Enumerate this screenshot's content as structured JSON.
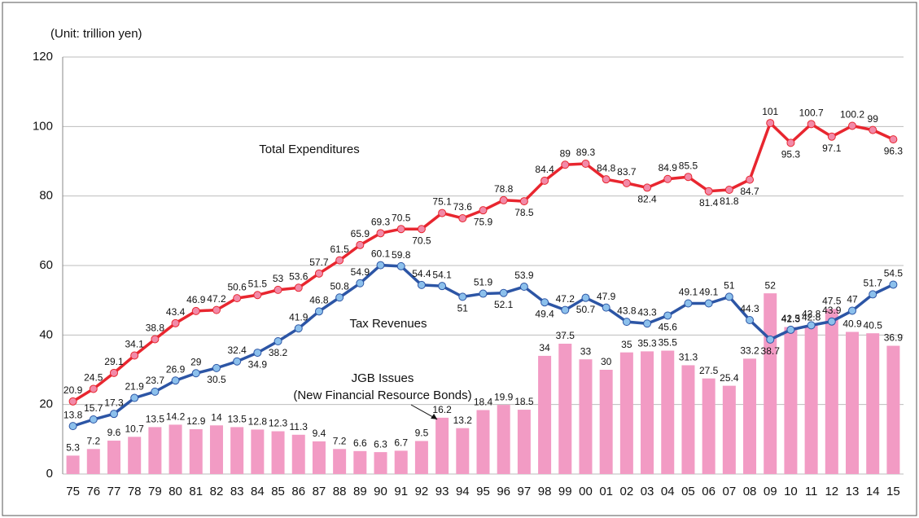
{
  "chart_data": {
    "type": "combo",
    "unit_label": "(Unit: trillion yen)",
    "categories": [
      "75",
      "76",
      "77",
      "78",
      "79",
      "80",
      "81",
      "82",
      "83",
      "84",
      "85",
      "86",
      "87",
      "88",
      "89",
      "90",
      "91",
      "92",
      "93",
      "94",
      "95",
      "96",
      "97",
      "98",
      "99",
      "00",
      "01",
      "02",
      "03",
      "04",
      "05",
      "06",
      "07",
      "08",
      "09",
      "10",
      "11",
      "12",
      "13",
      "14",
      "15"
    ],
    "series": [
      {
        "name": "JGB Issues",
        "type": "bar",
        "color": "#f29bc4",
        "values": [
          5.3,
          7.2,
          9.6,
          10.7,
          13.5,
          14.2,
          12.9,
          14.0,
          13.5,
          12.8,
          12.3,
          11.3,
          9.4,
          7.2,
          6.6,
          6.3,
          6.7,
          9.5,
          16.2,
          13.2,
          18.4,
          19.9,
          18.5,
          34.0,
          37.5,
          33.0,
          30.0,
          35.0,
          35.3,
          35.5,
          31.3,
          27.5,
          25.4,
          33.2,
          52.0,
          42.3,
          42.8,
          47.5,
          40.9,
          40.5,
          36.9
        ]
      },
      {
        "name": "Total Expenditures",
        "type": "line",
        "color": "#e8262f",
        "marker_color": "#f28aa8",
        "values": [
          20.9,
          24.5,
          29.1,
          34.1,
          38.8,
          43.4,
          46.9,
          47.2,
          50.6,
          51.5,
          53.0,
          53.6,
          57.7,
          61.5,
          65.9,
          69.3,
          70.5,
          70.5,
          75.1,
          73.6,
          75.9,
          78.8,
          78.5,
          84.4,
          89.0,
          89.3,
          84.8,
          83.7,
          82.4,
          84.9,
          85.5,
          81.4,
          81.8,
          84.7,
          101.0,
          95.3,
          100.7,
          97.1,
          100.2,
          99.0,
          96.3
        ]
      },
      {
        "name": "Tax Revenues",
        "type": "line",
        "color": "#2c55a5",
        "marker_color": "#8cc0ec",
        "values": [
          13.8,
          15.7,
          17.3,
          21.9,
          23.7,
          26.9,
          29.0,
          30.5,
          32.4,
          34.9,
          38.2,
          41.9,
          46.8,
          50.8,
          54.9,
          60.1,
          59.8,
          54.4,
          54.1,
          51.0,
          51.9,
          52.1,
          53.9,
          49.4,
          47.2,
          50.7,
          47.9,
          43.8,
          43.3,
          45.6,
          49.1,
          49.1,
          51.0,
          44.3,
          38.7,
          41.5,
          42.8,
          43.9,
          47.0,
          51.7,
          54.5
        ]
      }
    ],
    "annotation": "(New Financial Resource Bonds)",
    "ylim": [
      0,
      120
    ],
    "yticks": [
      0,
      20,
      40,
      60,
      80,
      100,
      120
    ],
    "grid": true
  }
}
